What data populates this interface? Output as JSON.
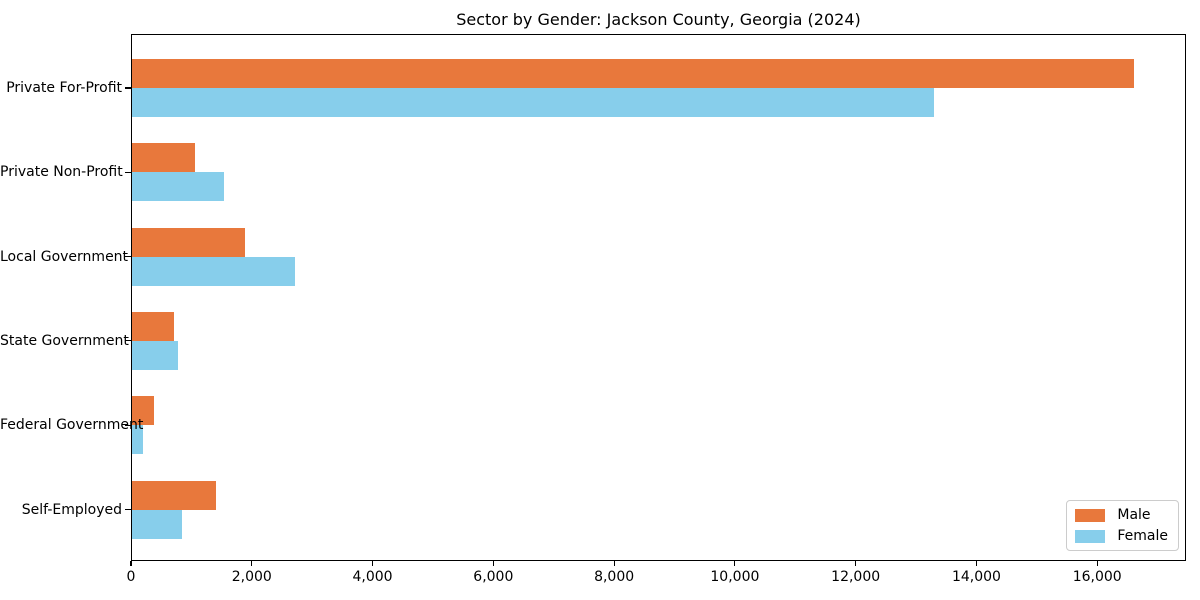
{
  "title": "Sector by Gender: Jackson County, Georgia (2024)",
  "chart_data": {
    "type": "bar",
    "orientation": "horizontal",
    "title": "Sector by Gender: Jackson County, Georgia (2024)",
    "categories": [
      "Private For-Profit",
      "Private Non-Profit",
      "Local Government",
      "State Government",
      "Federal Government",
      "Self-Employed"
    ],
    "series": [
      {
        "name": "Male",
        "color": "#E8783C",
        "values": [
          16630,
          1050,
          1880,
          690,
          370,
          1390
        ]
      },
      {
        "name": "Female",
        "color": "#87CEEB",
        "values": [
          13310,
          1530,
          2700,
          760,
          180,
          830
        ]
      }
    ],
    "xlabel": "",
    "ylabel": "",
    "xlim": [
      0,
      17470
    ],
    "xticks": [
      0,
      2000,
      4000,
      6000,
      8000,
      10000,
      12000,
      14000,
      16000
    ],
    "xtick_labels": [
      "0",
      "2,000",
      "4,000",
      "6,000",
      "8,000",
      "10,000",
      "12,000",
      "14,000",
      "16,000"
    ],
    "grid": false,
    "legend": {
      "position": "lower right",
      "entries": [
        "Male",
        "Female"
      ]
    },
    "colors": {
      "male": "#E8783C",
      "female": "#87CEEB",
      "spine": "#000000",
      "background": "#ffffff"
    }
  }
}
